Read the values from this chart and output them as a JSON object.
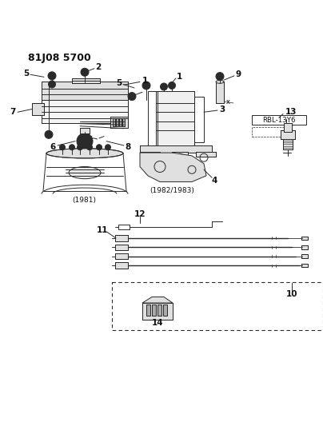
{
  "title": "81J08 5700",
  "bg_color": "#ffffff",
  "line_color": "#2a2a2a",
  "label_color": "#111111",
  "title_fontsize": 9,
  "label_fontsize": 7.5,
  "fig_width": 4.04,
  "fig_height": 5.33,
  "dpi": 100,
  "caption1981": "(1981)",
  "caption1982": "(1982/1983)",
  "sparkplug_label": "RBL-13Y6",
  "gray_fill": "#c8c8c8",
  "light_gray": "#e0e0e0",
  "mid_gray": "#aaaaaa"
}
